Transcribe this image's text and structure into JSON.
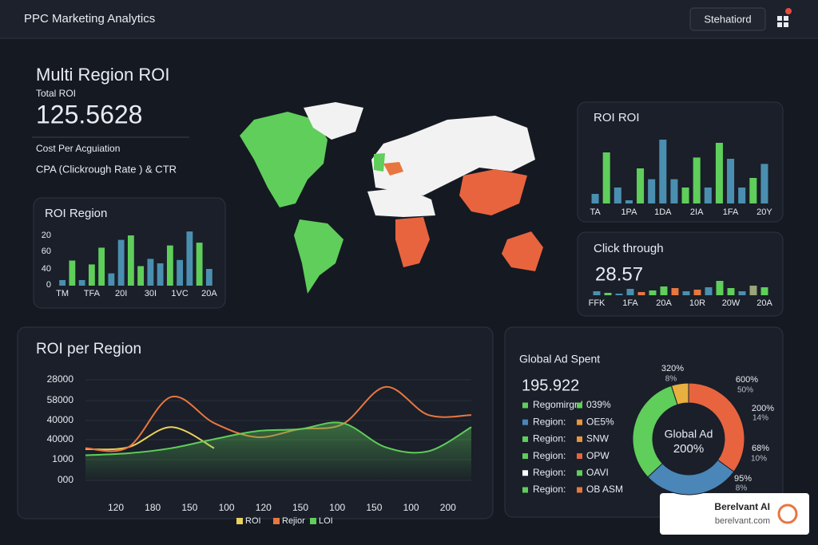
{
  "header": {
    "title": "PPC Marketing Analytics",
    "button": "Stehatiord"
  },
  "kpi": {
    "title": "Multi Region ROI",
    "label": "Total ROI",
    "value": "125.5628",
    "line1": "Cost Per Acguiation",
    "line2": "CPA (Clickrough Rate ) & CTR"
  },
  "chart_data": [
    {
      "type": "bar",
      "title": "ROI Region",
      "y_labels": [
        "20",
        "60",
        "40",
        "0"
      ],
      "ylim": [
        0,
        100
      ],
      "categories": [
        "TM",
        null,
        null,
        "TFA",
        null,
        null,
        "20I",
        null,
        null,
        "30I",
        null,
        null,
        "1VC",
        null,
        null,
        "20A"
      ],
      "values": [
        10,
        45,
        10,
        38,
        68,
        22,
        82,
        90,
        35,
        48,
        40,
        72,
        46,
        97,
        77,
        30
      ],
      "colors": [
        "#4a8fb0",
        "#5fce5a",
        "#4a8fb0",
        "#5fce5a",
        "#5fce5a",
        "#4a8fb0",
        "#4a8fb0",
        "#5fce5a",
        "#5fce5a",
        "#4a8fb0",
        "#4a8fb0",
        "#5fce5a",
        "#4a8fb0",
        "#4a8fb0",
        "#5fce5a",
        "#4a8fb0"
      ]
    },
    {
      "type": "bar",
      "title": "ROI ROI",
      "ylim": [
        0,
        100
      ],
      "categories": [
        "TA",
        null,
        null,
        "1PA",
        null,
        null,
        "1DA",
        null,
        null,
        "2IA",
        null,
        null,
        "1FA",
        null,
        null,
        "20Y"
      ],
      "values": [
        15,
        80,
        25,
        5,
        55,
        38,
        100,
        38,
        25,
        72,
        25,
        95,
        70,
        25,
        40,
        62
      ],
      "colors": [
        "#4a8fb0",
        "#5fce5a",
        "#4a8fb0",
        "#4a8fb0",
        "#5fce5a",
        "#4a8fb0",
        "#4a8fb0",
        "#4a8fb0",
        "#5fce5a",
        "#5fce5a",
        "#4a8fb0",
        "#5fce5a",
        "#4a8fb0",
        "#4a8fb0",
        "#5fce5a",
        "#4a8fb0"
      ]
    },
    {
      "type": "bar",
      "title": "Click through",
      "value": "28.57",
      "ylim": [
        0,
        100
      ],
      "categories": [
        "FFK",
        null,
        null,
        "1FA",
        null,
        null,
        "20A",
        null,
        null,
        "10R",
        null,
        null,
        "20W",
        null,
        null,
        "20A"
      ],
      "values": [
        25,
        15,
        10,
        40,
        20,
        30,
        55,
        45,
        25,
        35,
        50,
        90,
        45,
        25,
        60,
        50
      ],
      "colors": [
        "#4a8fb0",
        "#5fce5a",
        "#4a8fb0",
        "#4a8fb0",
        "#e8763f",
        "#5fce5a",
        "#5fce5a",
        "#e8763f",
        "#4a8fb0",
        "#e8763f",
        "#4a8fb0",
        "#5fce5a",
        "#5fce5a",
        "#4a8fb0",
        "#9aa37a",
        "#5fce5a"
      ]
    },
    {
      "type": "line",
      "title": "ROI per Region",
      "y_labels": [
        "28000",
        "58000",
        "40000",
        "40000",
        "1000",
        "000"
      ],
      "ylim": [
        0,
        100
      ],
      "categories": [
        "120",
        "180",
        "150",
        "100",
        "120",
        "150",
        "100",
        "150",
        "100",
        "200"
      ],
      "series": [
        {
          "name": "ROI",
          "color": "#e8d25a",
          "values": [
            31,
            33,
            53,
            32,
            null,
            null,
            null,
            null,
            null,
            null
          ]
        },
        {
          "name": "Rejior",
          "color": "#e8763f",
          "values": [
            32,
            33,
            83,
            57,
            43,
            51,
            56,
            93,
            65,
            65
          ]
        },
        {
          "name": "LOI",
          "color": "#5fce5a",
          "area": true,
          "values": [
            25,
            27,
            32,
            41,
            49,
            51,
            57,
            33,
            29,
            53
          ]
        }
      ]
    },
    {
      "type": "donut",
      "title": "Global Ad Spent",
      "value": "195.922",
      "center": [
        "Global Ad",
        "200%"
      ],
      "values": [
        5,
        35,
        28,
        32
      ],
      "colors": [
        "#e8b040",
        "#e8643f",
        "#4a86b8",
        "#5fce5a"
      ],
      "annotations": [
        "320%",
        "8%",
        "600%",
        "50%",
        "200%",
        "14%",
        "68%",
        "10%",
        "95%",
        "8%"
      ],
      "legend": [
        {
          "name": "Regomirgrd",
          "value": "039%",
          "color": "#5fce5a",
          "value_color": "#5fce5a"
        },
        {
          "name": "Region:",
          "value": "OE5%",
          "color": "#4a86b8",
          "value_color": "#e8963f"
        },
        {
          "name": "Region:",
          "value": "SNW",
          "color": "#5fce5a",
          "value_color": "#e8963f"
        },
        {
          "name": "Region:",
          "value": "OPW",
          "color": "#5fce5a",
          "value_color": "#e8643f"
        },
        {
          "name": "Region:",
          "value": "OAVI",
          "color": "#ffffff",
          "value_color": "#5fce5a"
        },
        {
          "name": "Region:",
          "value": "OB ASM",
          "color": "#5fce5a",
          "value_color": "#e8763f"
        }
      ]
    }
  ],
  "watermark": {
    "name": "Berelvant AI",
    "url": "berelvant.com"
  }
}
